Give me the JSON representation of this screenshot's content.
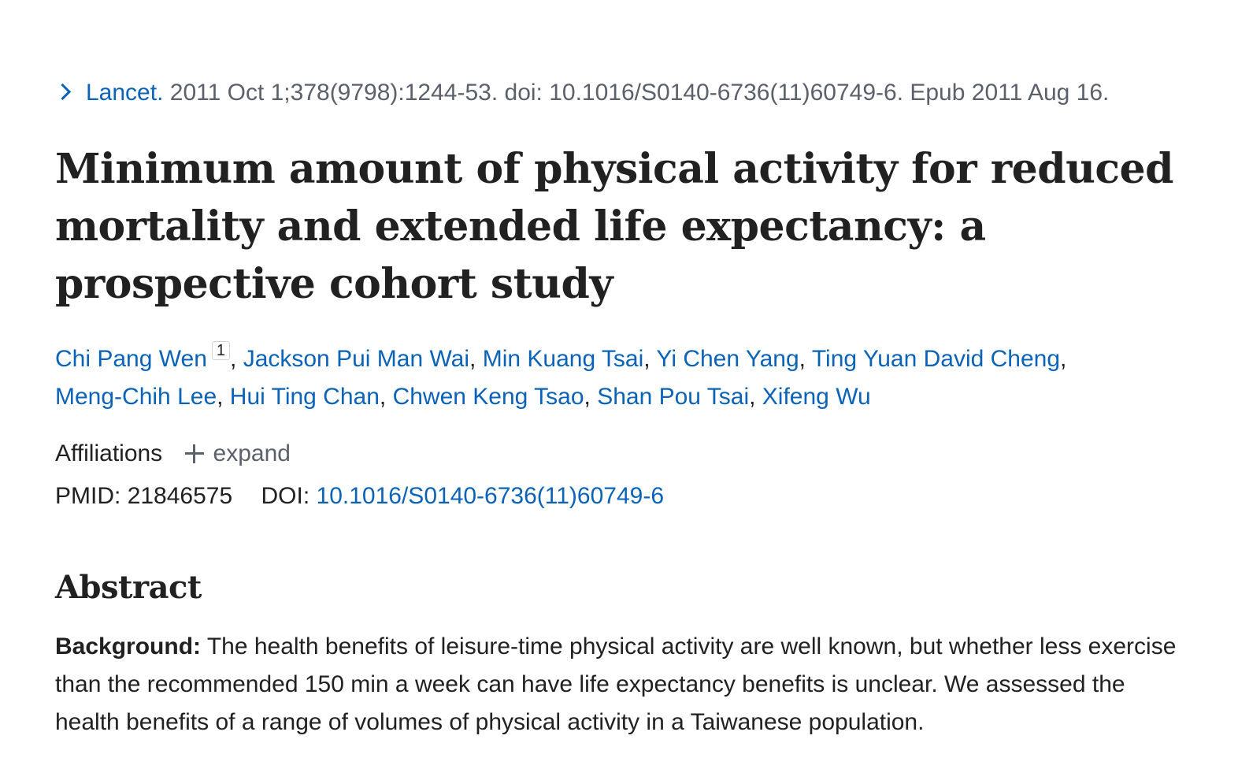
{
  "citation": {
    "journal": "Lancet.",
    "details": "2011 Oct 1;378(9798):1244-53. doi: 10.1016/S0140-6736(11)60749-6. Epub 2011 Aug 16."
  },
  "article": {
    "title": "Minimum amount of physical activity for reduced mortality and extended life expectancy: a prospective cohort study"
  },
  "authors": [
    "Chi Pang Wen",
    "Jackson Pui Man Wai",
    "Min Kuang Tsai",
    "Yi Chen Yang",
    "Ting Yuan David Cheng",
    "Meng-Chih Lee",
    "Hui Ting Chan",
    "Chwen Keng Tsao",
    "Shan Pou Tsai",
    "Xifeng Wu"
  ],
  "author_affiliation_marker": "1",
  "separator": ", ",
  "affiliations": {
    "label": "Affiliations",
    "expand_label": "expand"
  },
  "ids": {
    "pmid_label": "PMID:",
    "pmid": "21846575",
    "doi_label": "DOI:",
    "doi": "10.1016/S0140-6736(11)60749-6"
  },
  "abstract": {
    "heading": "Abstract",
    "background_label": "Background:",
    "background_text": "The health benefits of leisure-time physical activity are well known, but whether less exercise than the recommended 150 min a week can have life expectancy benefits is unclear. We assessed the health benefits of a range of volumes of physical activity in a Taiwanese population."
  },
  "colors": {
    "link": "#0b63b8",
    "text": "#212121",
    "muted": "#5b616b"
  },
  "icons": {
    "citation_toggle": "chevron-right-icon",
    "expand": "plus-icon"
  }
}
